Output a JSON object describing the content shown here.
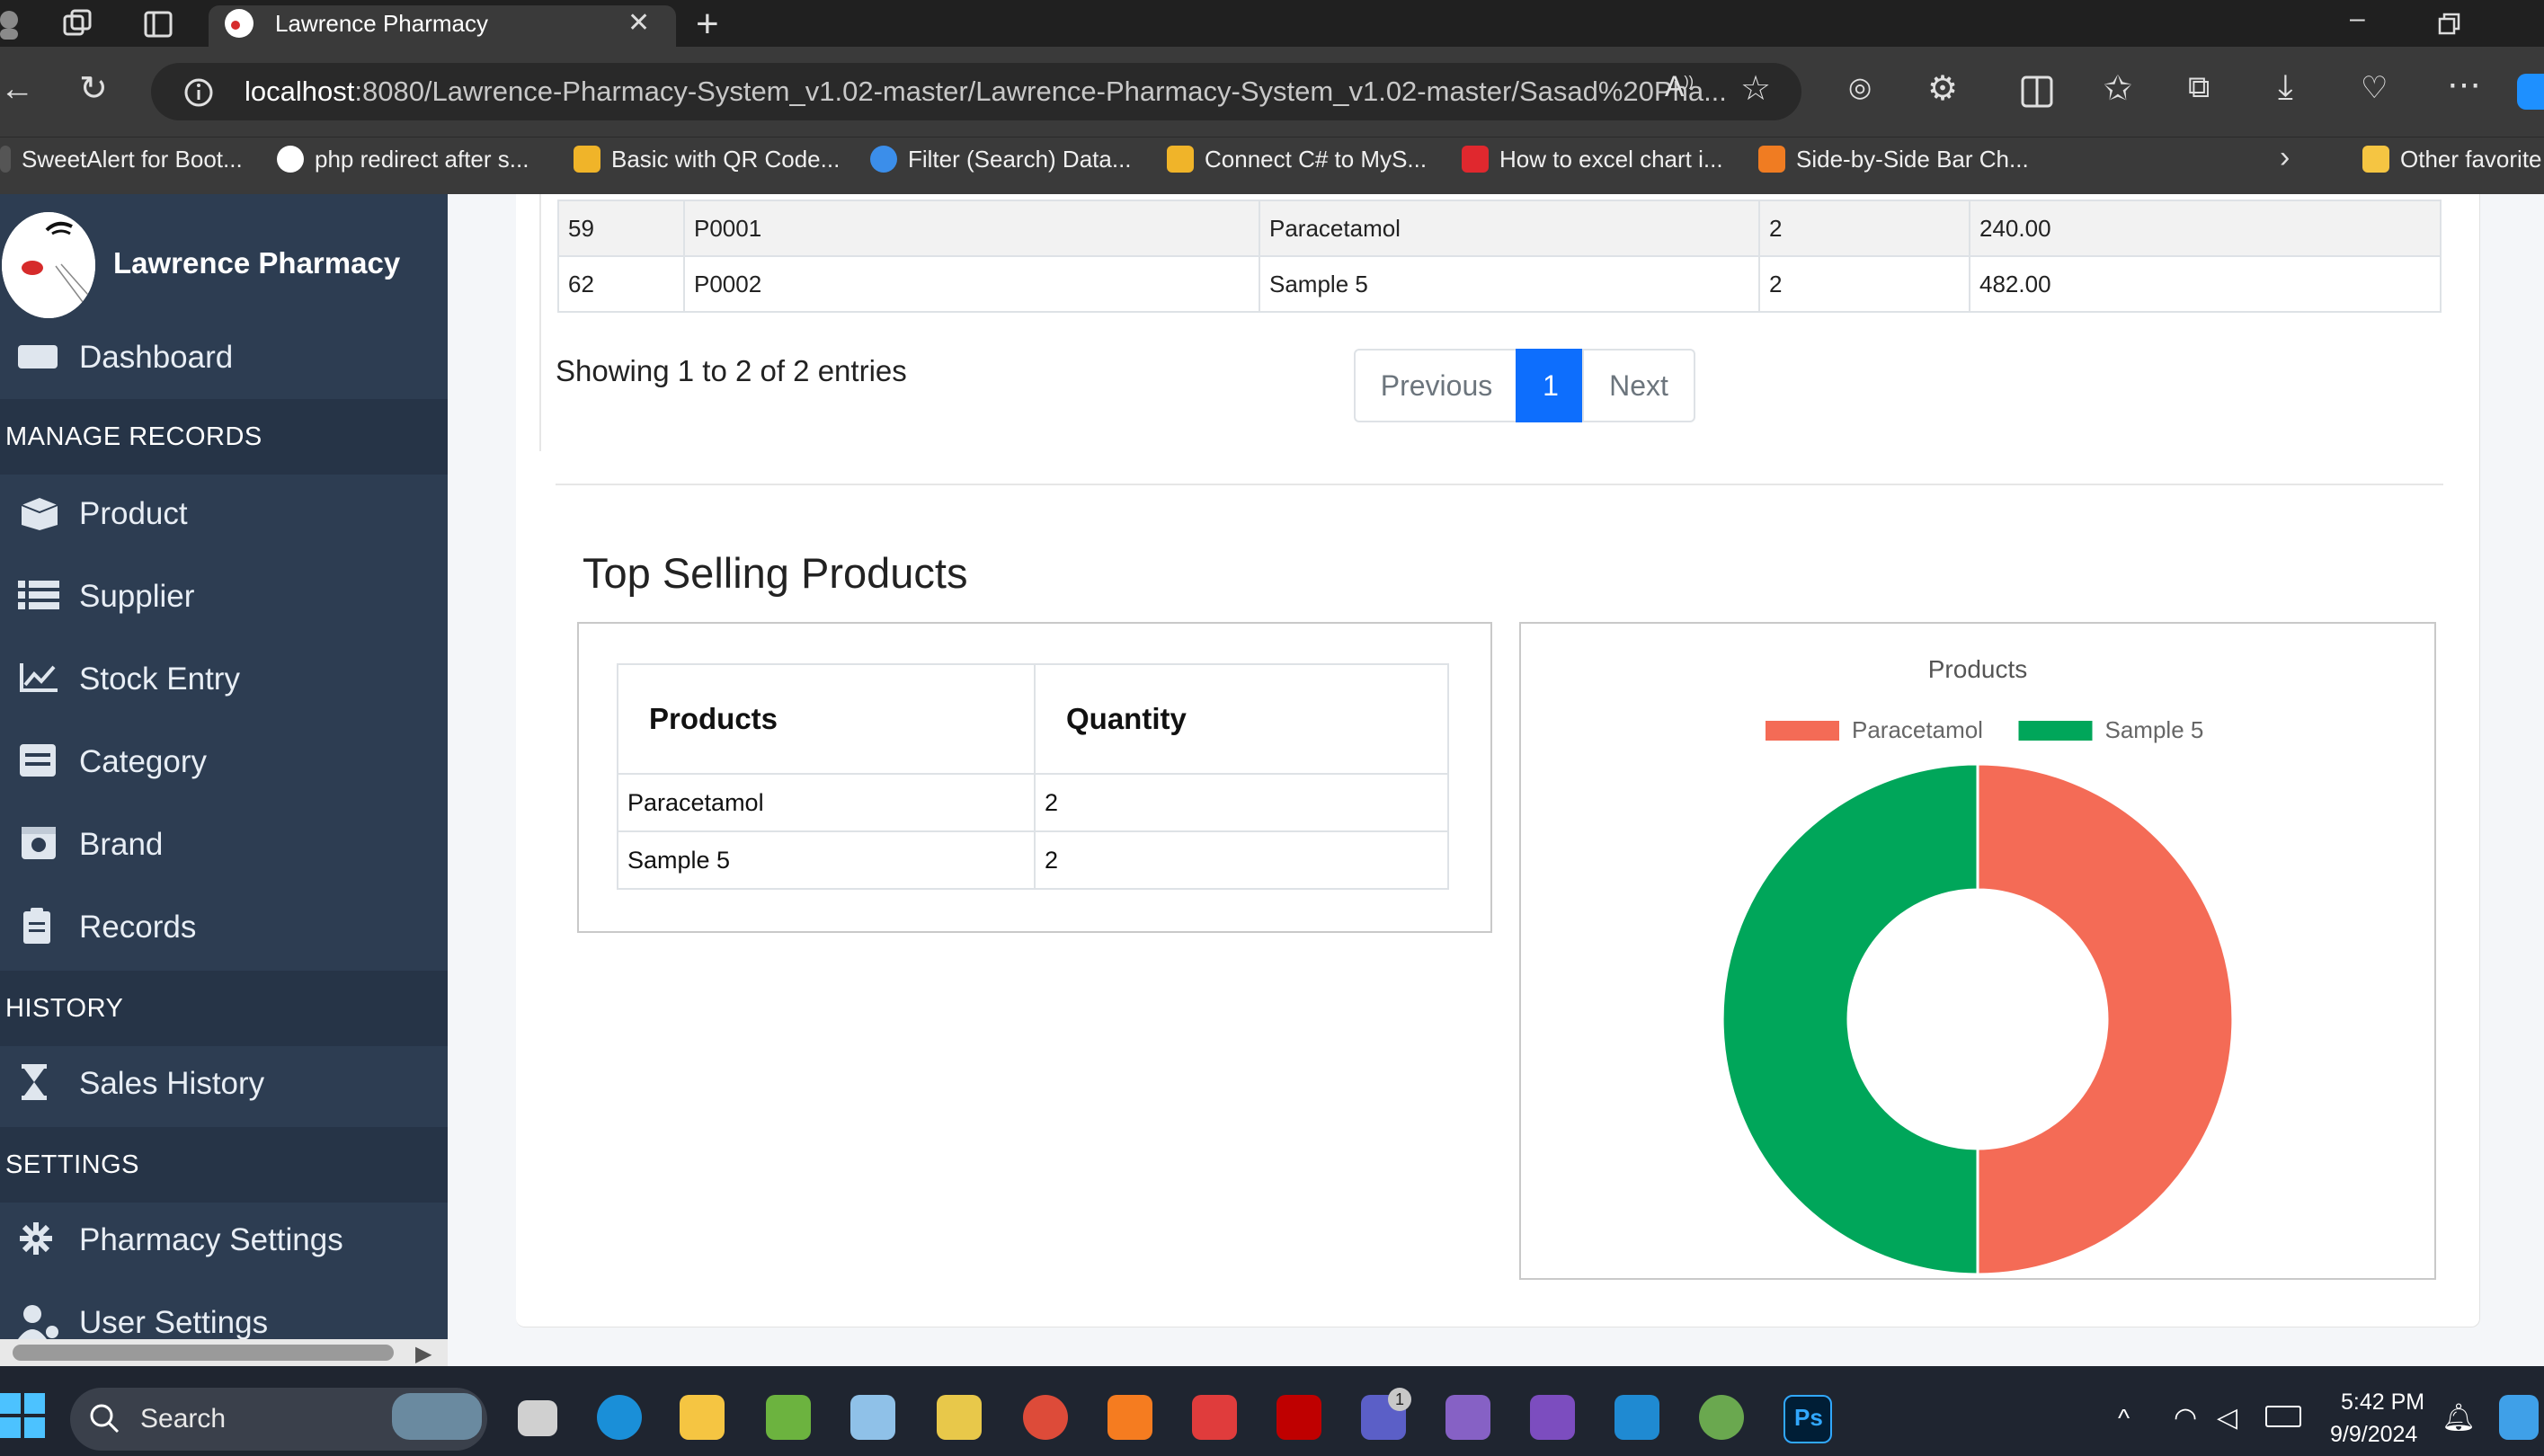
{
  "browser": {
    "tab_title": "Lawrence Pharmacy",
    "url_host": "localhost",
    "url_path": ":8080/Lawrence-Pharmacy-System_v1.02-master/Lawrence-Pharmacy-System_v1.02-master/Sasad%20Pha...",
    "bookmarks": [
      "SweetAlert for Boot...",
      "php redirect after s...",
      "Basic with QR Code...",
      "Filter (Search) Data...",
      "Connect C# to MyS...",
      "How to excel chart i...",
      "Side-by-Side Bar Ch...",
      "Other favorite"
    ]
  },
  "sidebar": {
    "brand": "Lawrence Pharmacy",
    "partial_item": "Dashboard",
    "sections": {
      "manage": "MANAGE RECORDS",
      "history": "HISTORY",
      "settings": "SETTINGS"
    },
    "items": {
      "product": "Product",
      "supplier": "Supplier",
      "stock": "Stock Entry",
      "category": "Category",
      "brand": "Brand",
      "records": "Records",
      "sales_history": "Sales History",
      "pharmacy_settings": "Pharmacy Settings",
      "user_settings": "User Settings"
    }
  },
  "records_table": {
    "rows": [
      {
        "id": "59",
        "code": "P0001",
        "name": "Paracetamol",
        "qty": "2",
        "total": "240.00"
      },
      {
        "id": "62",
        "code": "P0002",
        "name": "Sample 5",
        "qty": "2",
        "total": "482.00"
      }
    ],
    "info": "Showing 1 to 2 of 2 entries",
    "pagination": {
      "previous": "Previous",
      "current": "1",
      "next": "Next"
    }
  },
  "top_selling": {
    "title": "Top Selling Products",
    "headers": {
      "products": "Products",
      "quantity": "Quantity"
    },
    "rows": [
      {
        "product": "Paracetamol",
        "quantity": "2"
      },
      {
        "product": "Sample 5",
        "quantity": "2"
      }
    ]
  },
  "chart_data": {
    "type": "pie",
    "title": "Products",
    "categories": [
      "Paracetamol",
      "Sample 5"
    ],
    "values": [
      2,
      2
    ],
    "colors": [
      "#f46b56",
      "#00a65a"
    ],
    "legend": "top"
  },
  "taskbar": {
    "search": "Search",
    "time": "5:42 PM",
    "date": "9/9/2024",
    "teams_badge": "1"
  }
}
